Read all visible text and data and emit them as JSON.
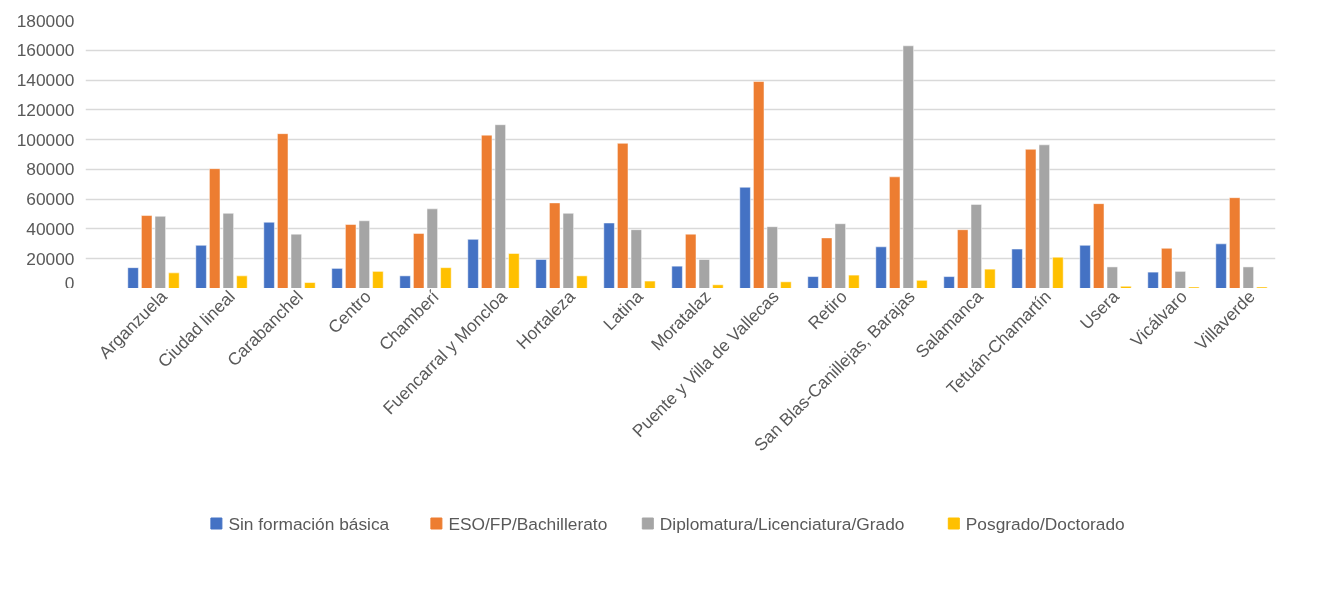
{
  "chart_data": {
    "type": "bar",
    "categories": [
      "Arganzuela",
      "Ciudad lineal",
      "Carabanchel",
      "Centro",
      "Chamberí",
      "Fuencarral y Moncloa",
      "Hortaleza",
      "Latina",
      "Moratalaz",
      "Puente y Villa de Vallecas",
      "Retiro",
      "San Blas-Canillejas, Barajas",
      "Salamanca",
      "Tetuán-Chamartín",
      "Usera",
      "Vicálvaro",
      "Villaverde"
    ],
    "series": [
      {
        "name": "Sin formación básica",
        "color": "#4472c4",
        "values": [
          14000,
          29000,
          44500,
          13500,
          8500,
          33000,
          19500,
          44000,
          15000,
          68000,
          8000,
          28000,
          8000,
          26500,
          29000,
          11000,
          30000
        ]
      },
      {
        "name": "ESO/FP/Bachillerato",
        "color": "#ed7d31",
        "values": [
          49000,
          80500,
          104000,
          43000,
          37000,
          103000,
          57500,
          97500,
          36500,
          139000,
          34000,
          75000,
          39500,
          93500,
          57000,
          27000,
          61000
        ]
      },
      {
        "name": "Diplomatura/Licenciatura/Grado",
        "color": "#a5a5a5",
        "values": [
          48500,
          50500,
          36500,
          45500,
          53500,
          110000,
          50500,
          39500,
          19500,
          41500,
          43500,
          163000,
          56500,
          96500,
          14500,
          11500,
          14500
        ]
      },
      {
        "name": "Posgrado/Doctorado",
        "color": "#ffc000",
        "values": [
          10500,
          8500,
          4000,
          11500,
          14000,
          23500,
          8500,
          5000,
          2500,
          4500,
          9000,
          5500,
          13000,
          21000,
          1500,
          1000,
          1000
        ]
      }
    ],
    "ylim": [
      0,
      180000
    ],
    "yticks": [
      0,
      20000,
      40000,
      60000,
      80000,
      100000,
      120000,
      140000,
      160000,
      180000
    ],
    "grid": "y",
    "legend": "bottom"
  }
}
